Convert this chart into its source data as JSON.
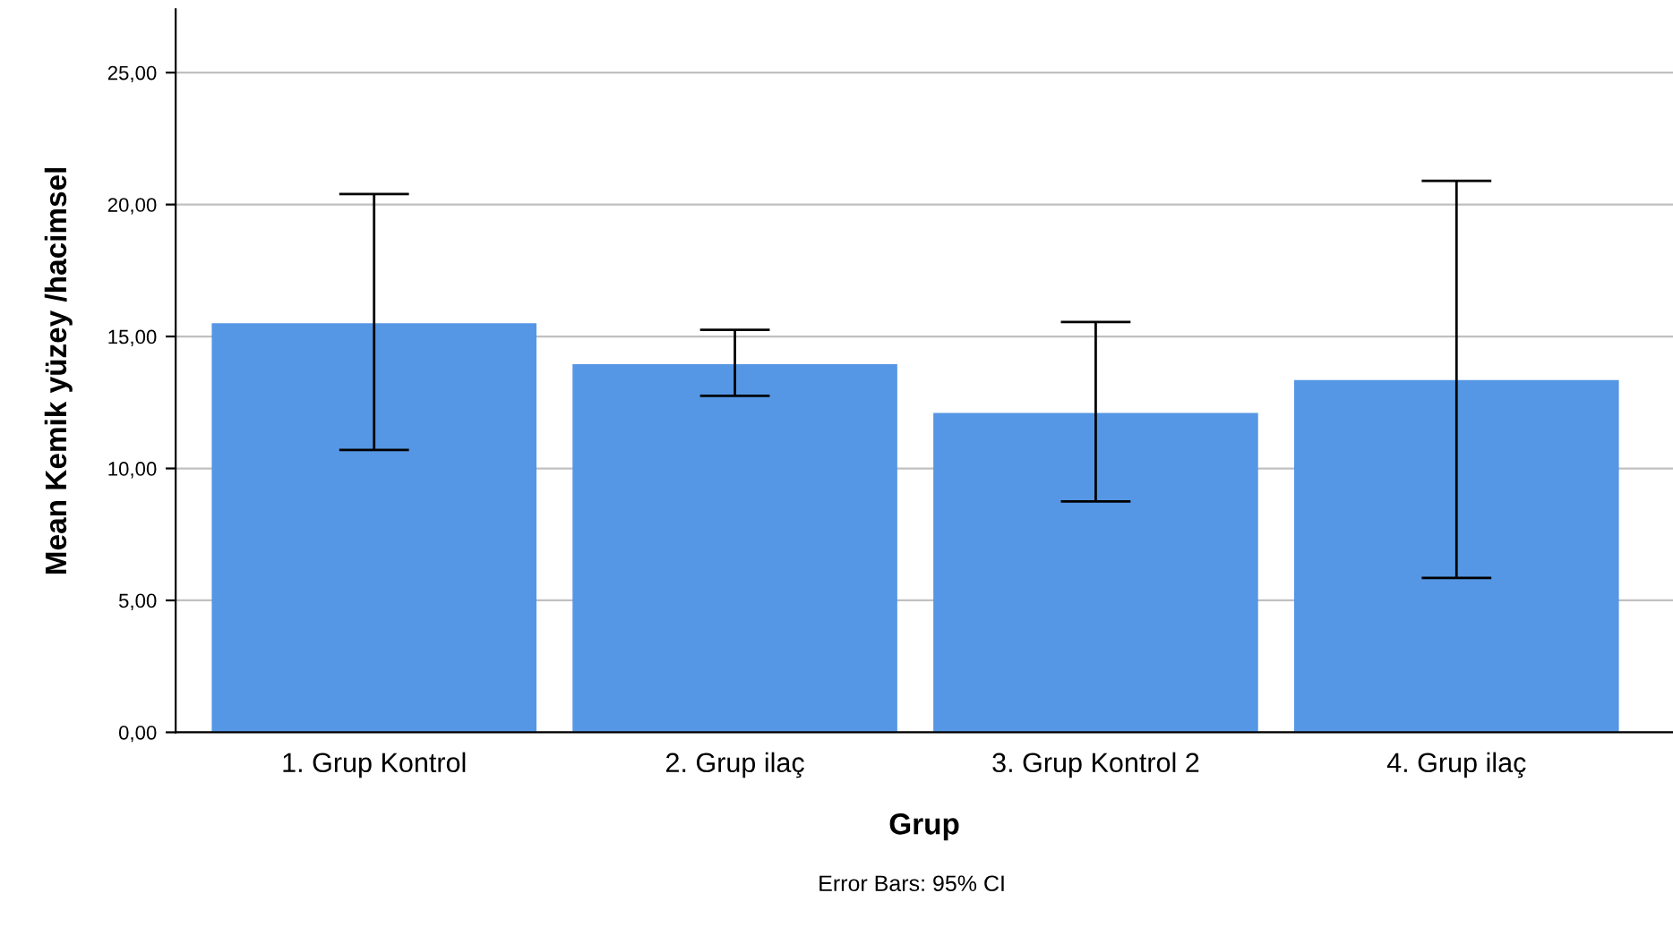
{
  "chart_data": {
    "type": "bar",
    "xlabel": "Grup",
    "ylabel": "Mean Kemik yüzey /hacimsel",
    "categories": [
      "1. Grup Kontrol",
      "2. Grup ilaç",
      "3. Grup Kontrol 2",
      "4. Grup ilaç"
    ],
    "values": [
      15.5,
      13.95,
      12.1,
      13.35
    ],
    "errors": [
      [
        10.7,
        20.4
      ],
      [
        12.75,
        15.25
      ],
      [
        8.75,
        15.55
      ],
      [
        5.85,
        20.9
      ]
    ],
    "color": "#5596e5",
    "ylim": [
      0,
      27.4
    ],
    "yticks": [
      {
        "value": 0,
        "label": "0,00"
      },
      {
        "value": 5,
        "label": "5,00"
      },
      {
        "value": 10,
        "label": "10,00"
      },
      {
        "value": 15,
        "label": "15,00"
      },
      {
        "value": 20,
        "label": "20,00"
      },
      {
        "value": 25,
        "label": "25,00"
      }
    ],
    "grid": "y",
    "legend": false,
    "annotations": [
      "Error Bars: 95% CI"
    ]
  }
}
